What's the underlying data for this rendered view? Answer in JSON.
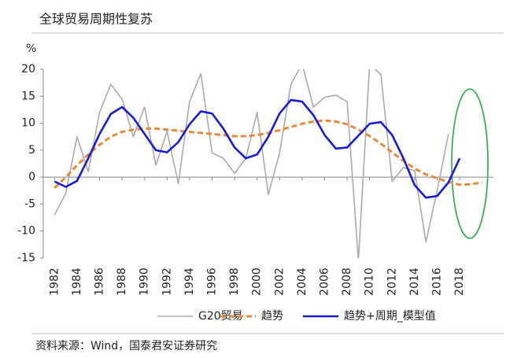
{
  "chart_data": {
    "type": "line",
    "title": "全球贸易周期性复苏",
    "y_label": "%",
    "source": "资料来源：Wind，国泰君安证券研究",
    "x": [
      1982,
      1983,
      1984,
      1985,
      1986,
      1987,
      1988,
      1989,
      1990,
      1991,
      1992,
      1993,
      1994,
      1995,
      1996,
      1997,
      1998,
      1999,
      2000,
      2001,
      2002,
      2003,
      2004,
      2005,
      2006,
      2007,
      2008,
      2009,
      2010,
      2011,
      2012,
      2013,
      2014,
      2015,
      2016,
      2017,
      2018,
      2019,
      2020
    ],
    "series": [
      {
        "name": "G20贸易",
        "color": "#aaaaaa",
        "style": "solid",
        "width": 1.6,
        "values": [
          -7,
          -3,
          7.5,
          1,
          12,
          17.2,
          14.5,
          7.5,
          13,
          2.2,
          8.5,
          -1.2,
          14,
          19.2,
          4.5,
          3.5,
          0.7,
          3.5,
          12,
          -3.2,
          4.5,
          17.2,
          21,
          13,
          14.8,
          15.2,
          14,
          -15.5,
          21,
          19,
          -0.8,
          1.8,
          1.2,
          -12,
          -2.5,
          8,
          null,
          null,
          null
        ]
      },
      {
        "name": "趋势",
        "color": "#e8883a",
        "style": "dashed",
        "width": 3,
        "values": [
          -2,
          0,
          2.2,
          4.2,
          6,
          7.5,
          8.4,
          8.8,
          9,
          9,
          8.8,
          8.6,
          8.4,
          8.2,
          8,
          7.8,
          7.6,
          7.6,
          7.8,
          8.2,
          8.7,
          9.3,
          9.9,
          10.3,
          10.5,
          10.3,
          9.8,
          8.8,
          7.6,
          6.2,
          4.6,
          3,
          1.6,
          0.5,
          -0.2,
          -0.9,
          -1.4,
          -1.3,
          -1
        ]
      },
      {
        "name": "趋势+周期_模型值",
        "color": "#1a1adb",
        "style": "solid",
        "width": 2.6,
        "values": [
          -0.8,
          -1.8,
          -0.7,
          3.5,
          8,
          11.7,
          13,
          11,
          8,
          5,
          4.6,
          6.5,
          9.8,
          12.2,
          11.8,
          9,
          5.5,
          3.5,
          4.2,
          7.5,
          11.8,
          14.3,
          14,
          11.5,
          7.8,
          5.3,
          5.5,
          7.7,
          9.9,
          10.2,
          7.8,
          3.5,
          -1.5,
          -3.8,
          -3.5,
          -1,
          3.5,
          null,
          null
        ]
      }
    ],
    "xlim": [
      1981,
      2021
    ],
    "xticks": [
      1982,
      1984,
      1986,
      1988,
      1990,
      1992,
      1994,
      1996,
      1998,
      2000,
      2002,
      2004,
      2006,
      2008,
      2010,
      2012,
      2014,
      2016,
      2018
    ],
    "ylim": [
      -15,
      20
    ],
    "yticks": [
      -15,
      -10,
      -5,
      0,
      5,
      10,
      15,
      20
    ],
    "grid": false,
    "legend": "bottom"
  }
}
